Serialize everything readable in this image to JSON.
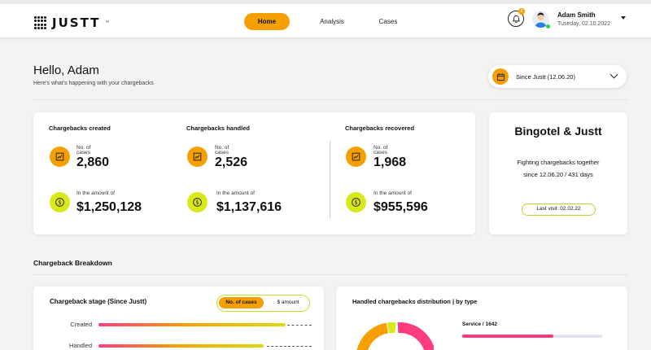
{
  "brand": {
    "name": "JUSTT",
    "tm": "™"
  },
  "nav": {
    "home": "Home",
    "analysis": "Analysis",
    "cases": "Cases"
  },
  "user": {
    "name": "Adam Smith",
    "date": "Tuseday, 02.10.2022",
    "notifications": "2"
  },
  "greeting": {
    "title": "Hello, Adam",
    "subtitle": "Here's what's happening with your chargebacks"
  },
  "date_filter": {
    "selected": "Since Justt (12.06.20)"
  },
  "stats": [
    {
      "title": "Chargebacks created",
      "cases_label_1": "No. of",
      "cases_label_2": "cases",
      "cases": "2,860",
      "amount_label": "In the amount of",
      "amount": "$1,250,128"
    },
    {
      "title": "Chargebacks handled",
      "cases_label_1": "No. of",
      "cases_label_2": "cases",
      "cases": "2,526",
      "amount_label": "In the amount of",
      "amount": "$1,137,616"
    },
    {
      "title": "Chargebacks recovered",
      "cases_label_1": "No. of",
      "cases_label_2": "cases",
      "cases": "1,968",
      "amount_label": "In the amount of",
      "amount": "$955,596"
    }
  ],
  "partner": {
    "title": "Bingotel & Justt",
    "line1": "Fighting chargebacks together",
    "line2": "since 12.06.20  /  431 days",
    "last_visit": "Last visit: 02.02.22"
  },
  "breakdown": {
    "section_title": "Chargeback Breakdown",
    "stage": {
      "title": "Chargeback stage (Since Justt)",
      "toggle_on": "No. of cases",
      "toggle_off": "$ amount",
      "bars": [
        {
          "label": "Created",
          "fraction": 1.0
        },
        {
          "label": "Handled",
          "fraction": 0.883
        }
      ]
    },
    "distribution": {
      "title": "Handled chargebacks distribution  |  by type",
      "service_label": "Service  /  1642",
      "service_fraction": 0.65
    }
  },
  "colors": {
    "accent": "#f5a000",
    "lime": "#d8e81a",
    "pink": "#ff3b7f"
  }
}
